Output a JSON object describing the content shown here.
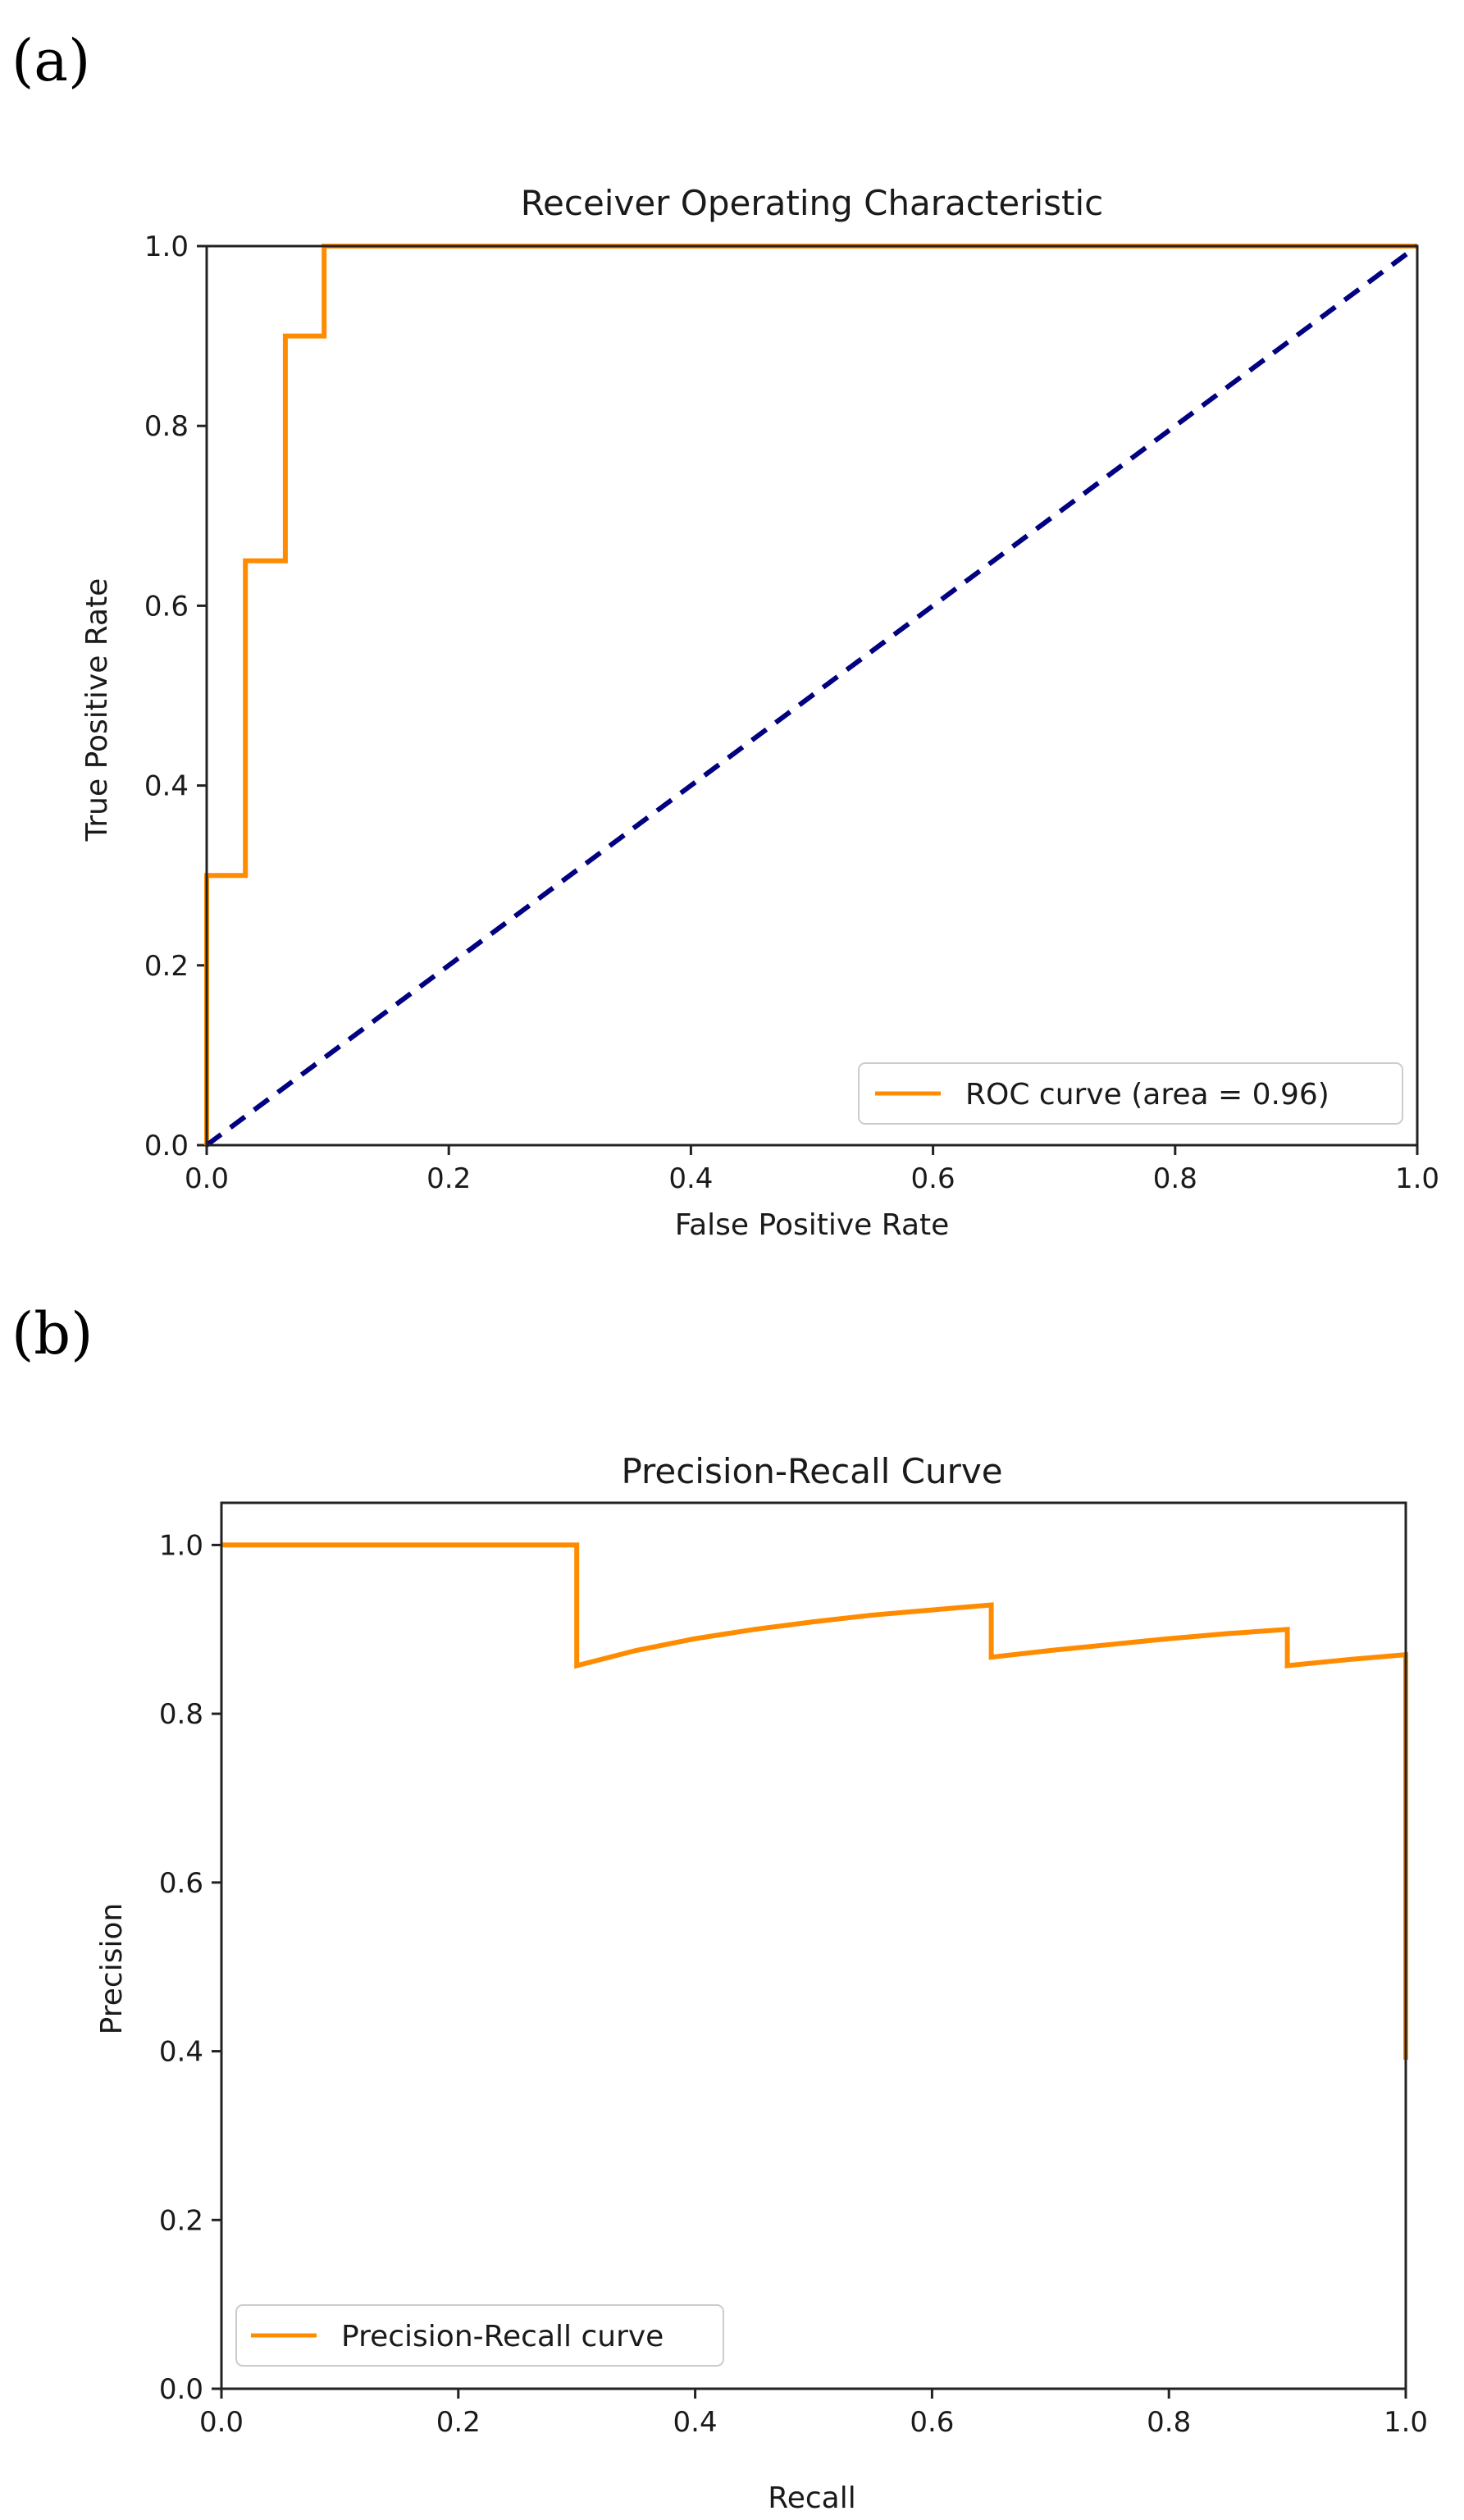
{
  "figure": {
    "panel_labels": [
      "(a)",
      "(b)"
    ]
  },
  "chart_data": [
    {
      "type": "line",
      "title": "Receiver Operating Characteristic",
      "xlabel": "False Positive Rate",
      "ylabel": "True Positive Rate",
      "xlim": [
        0.0,
        1.0
      ],
      "ylim": [
        0.0,
        1.0
      ],
      "xticks": [
        "0.0",
        "0.2",
        "0.4",
        "0.6",
        "0.8",
        "1.0"
      ],
      "yticks": [
        "0.0",
        "0.2",
        "0.4",
        "0.6",
        "0.8",
        "1.0"
      ],
      "grid": false,
      "legend_position": "lower-right",
      "series": [
        {
          "name": "ROC curve (area = 0.96)",
          "color": "#ff8c00",
          "style": "solid",
          "x": [
            0.0,
            0.0,
            0.032,
            0.032,
            0.065,
            0.065,
            0.097,
            0.097,
            1.0
          ],
          "y": [
            0.0,
            0.3,
            0.3,
            0.65,
            0.65,
            0.9,
            0.9,
            1.0,
            1.0
          ]
        },
        {
          "color": "#000080",
          "style": "dashed",
          "x": [
            0.0,
            1.0
          ],
          "y": [
            0.0,
            1.0
          ]
        }
      ]
    },
    {
      "type": "line",
      "title": "Precision-Recall Curve",
      "xlabel": "Recall",
      "ylabel": "Precision",
      "xlim": [
        0.0,
        1.0
      ],
      "ylim": [
        0.0,
        1.05
      ],
      "xticks": [
        "0.0",
        "0.2",
        "0.4",
        "0.6",
        "0.8",
        "1.0"
      ],
      "yticks": [
        "0.0",
        "0.2",
        "0.4",
        "0.6",
        "0.8",
        "1.0"
      ],
      "grid": false,
      "legend_position": "lower-left",
      "series": [
        {
          "name": "Precision-Recall curve",
          "color": "#ff8c00",
          "style": "solid",
          "x": [
            0.0,
            0.3,
            0.3,
            0.35,
            0.4,
            0.45,
            0.5,
            0.55,
            0.6,
            0.65,
            0.65,
            0.7,
            0.75,
            0.8,
            0.85,
            0.9,
            0.9,
            0.95,
            1.0,
            1.0
          ],
          "y": [
            1.0,
            1.0,
            0.857,
            0.875,
            0.889,
            0.9,
            0.909,
            0.917,
            0.923,
            0.929,
            0.867,
            0.875,
            0.882,
            0.889,
            0.895,
            0.9,
            0.857,
            0.864,
            0.87,
            0.39
          ]
        }
      ]
    }
  ]
}
